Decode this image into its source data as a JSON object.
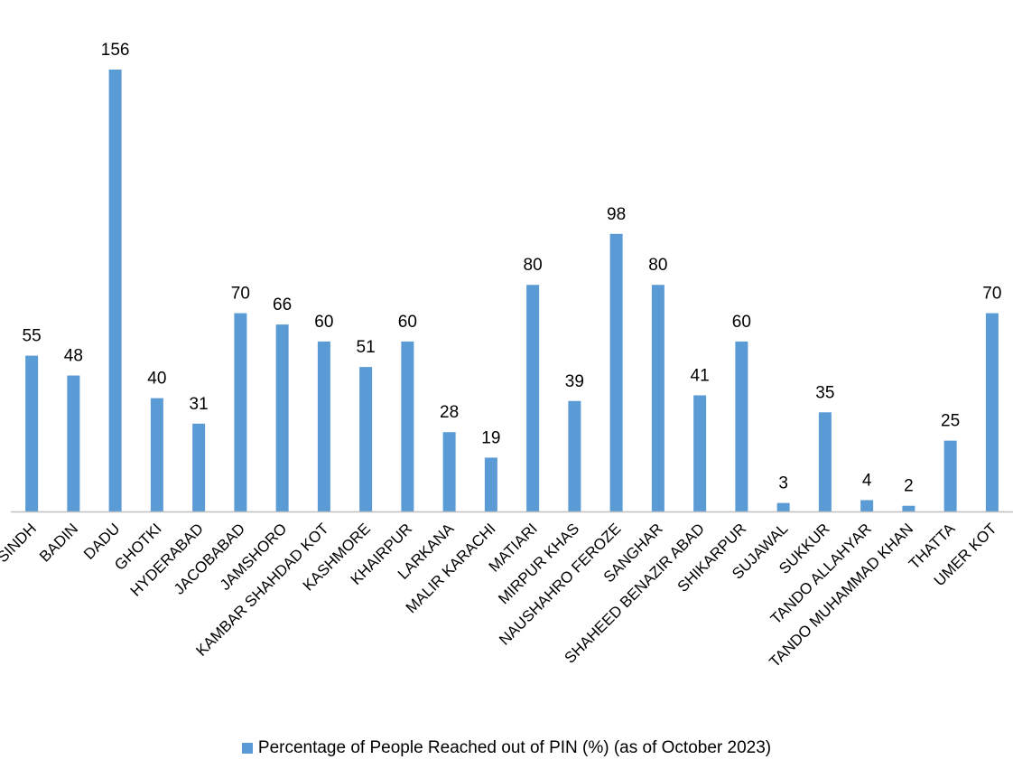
{
  "chart_data": {
    "type": "bar",
    "title": "",
    "xlabel": "",
    "ylabel": "",
    "ylim": [
      0,
      160
    ],
    "grid": false,
    "legend_position": "bottom-center",
    "colors": {
      "bar": "#5b9bd5",
      "axis": "#bfbfbf",
      "text": "#000000"
    },
    "categories": [
      "SINDH",
      "BADIN",
      "DADU",
      "GHOTKI",
      "HYDERABAD",
      "JACOBABAD",
      "JAMSHORO",
      "KAMBAR SHAHDAD KOT",
      "KASHMORE",
      "KHAIRPUR",
      "LARKANA",
      "MALIR KARACHI",
      "MATIARI",
      "MIRPUR KHAS",
      "NAUSHAHRO FEROZE",
      "SANGHAR",
      "SHAHEED BENAZIR ABAD",
      "SHIKARPUR",
      "SUJAWAL",
      "SUKKUR",
      "TANDO ALLAHYAR",
      "TANDO MUHAMMAD KHAN",
      "THATTA",
      "UMER KOT"
    ],
    "series": [
      {
        "name": "Percentage of People Reached out of PIN (%) (as of October 2023)",
        "values": [
          55,
          48,
          156,
          40,
          31,
          70,
          66,
          60,
          51,
          60,
          28,
          19,
          80,
          39,
          98,
          80,
          41,
          60,
          3,
          35,
          4,
          2,
          25,
          70
        ]
      }
    ]
  }
}
